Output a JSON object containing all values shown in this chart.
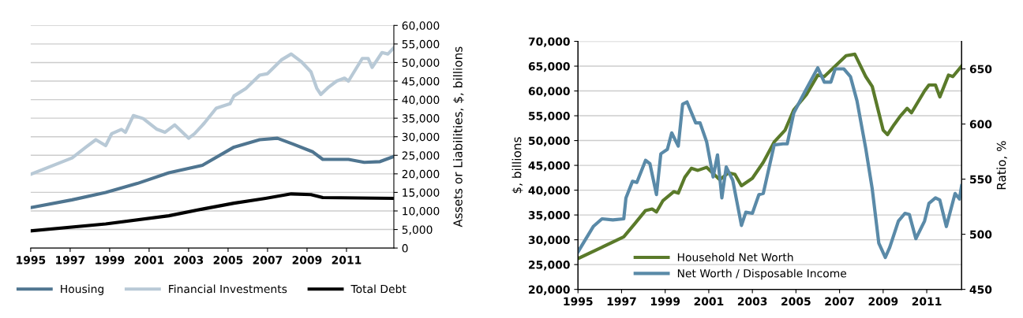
{
  "chart_data": [
    {
      "type": "line",
      "ylabel": "Assets or Liabilities, $, billions",
      "xlim": [
        1995,
        2013.4
      ],
      "xticks": [
        1995,
        1997,
        1999,
        2001,
        2003,
        2005,
        2007,
        2009,
        2011
      ],
      "ylim": [
        0,
        60000
      ],
      "yticks": [
        0,
        {
          "value": 5000,
          "label": "5,000"
        },
        {
          "value": 10000,
          "label": "10,000"
        },
        {
          "value": 15000,
          "label": "15,000"
        },
        {
          "value": 20000,
          "label": "20,000"
        },
        {
          "value": 25000,
          "label": "25,000"
        },
        {
          "value": 30000,
          "label": "30,000"
        },
        {
          "value": 35000,
          "label": "35,000"
        },
        {
          "value": 40000,
          "label": "40,000"
        },
        {
          "value": 45000,
          "label": "45,000"
        },
        {
          "value": 50000,
          "label": "50,000"
        },
        {
          "value": 55000,
          "label": "55,000"
        },
        {
          "value": 60000,
          "label": "60,000"
        }
      ],
      "grid": "y",
      "legend": "bottom",
      "series": [
        {
          "name": "Housing",
          "color": "#4f7590",
          "x": [
            1995,
            1997.1,
            1998.8,
            2000.4,
            2002.0,
            2003.7,
            2005.3,
            2006.6,
            2007.5,
            2008.3,
            2009.3,
            2009.8,
            2011.1,
            2011.9,
            2012.7,
            2013.4
          ],
          "values": [
            10900,
            13000,
            15000,
            17400,
            20300,
            22300,
            27200,
            29200,
            29600,
            28000,
            25900,
            23900,
            23900,
            23100,
            23300,
            24700
          ]
        },
        {
          "name": "Financial Investments",
          "color": "#b8c9d6",
          "x": [
            1995,
            1997.1,
            1997.8,
            1998.3,
            1998.8,
            1999.1,
            1999.6,
            1999.8,
            2000.2,
            2000.7,
            2001.4,
            2001.8,
            2002.3,
            2003.0,
            2003.3,
            2003.8,
            2004.4,
            2005.1,
            2005.3,
            2005.9,
            2006.6,
            2007.0,
            2007.7,
            2008.2,
            2008.7,
            2009.2,
            2009.5,
            2009.7,
            2010.1,
            2010.5,
            2010.9,
            2011.1,
            2011.8,
            2012.1,
            2012.3,
            2012.8,
            2013.1,
            2013.4
          ],
          "values": [
            19900,
            24300,
            27200,
            29200,
            27600,
            30800,
            32000,
            31200,
            35700,
            34900,
            32000,
            31200,
            33200,
            29600,
            30800,
            33700,
            37700,
            38900,
            41000,
            43000,
            46600,
            47000,
            50700,
            52300,
            50300,
            47500,
            43000,
            41400,
            43400,
            45000,
            45800,
            45000,
            51100,
            51100,
            48700,
            52700,
            52300,
            54000
          ]
        },
        {
          "name": "Total Debt",
          "color": "#000000",
          "x": [
            1995,
            1998.8,
            2002.0,
            2003.7,
            2005.3,
            2006.9,
            2008.2,
            2009.2,
            2009.8,
            2013.4
          ],
          "values": [
            4600,
            6500,
            8700,
            10500,
            12100,
            13400,
            14600,
            14400,
            13600,
            13400
          ]
        }
      ]
    },
    {
      "type": "line",
      "ylabel": "$, billions",
      "y2label": "Ratio, %",
      "xlim": [
        1995,
        2012.6
      ],
      "xticks": [
        1995,
        1997,
        1999,
        2001,
        2003,
        2005,
        2007,
        2009,
        2011
      ],
      "ylim": [
        20000,
        70000
      ],
      "yticks": [
        {
          "value": 20000,
          "label": "20,000"
        },
        {
          "value": 25000,
          "label": "25,000"
        },
        {
          "value": 30000,
          "label": "30,000"
        },
        {
          "value": 35000,
          "label": "35,000"
        },
        {
          "value": 40000,
          "label": "40,000"
        },
        {
          "value": 45000,
          "label": "45,000"
        },
        {
          "value": 50000,
          "label": "50,000"
        },
        {
          "value": 55000,
          "label": "55,000"
        },
        {
          "value": 60000,
          "label": "60,000"
        },
        {
          "value": 65000,
          "label": "65,000"
        },
        {
          "value": 70000,
          "label": "70,000"
        }
      ],
      "y2lim": [
        450,
        675
      ],
      "y2ticks": [
        450,
        500,
        550,
        600,
        650
      ],
      "grid": "y",
      "legend": "bottom",
      "series": [
        {
          "name": "Household Net Worth",
          "color": "#5a7a2a",
          "x": [
            1995,
            1996.1,
            1997.1,
            1997.6,
            1998.1,
            1998.4,
            1998.6,
            1998.9,
            1999.4,
            1999.6,
            1999.9,
            2000.2,
            2000.5,
            2000.9,
            2001.5,
            2001.9,
            2002.2,
            2002.5,
            2003.0,
            2003.5,
            2004.0,
            2004.5,
            2004.9,
            2005.5,
            2006.0,
            2006.3,
            2006.8,
            2007.3,
            2007.7,
            2008.2,
            2008.5,
            2009.0,
            2009.2,
            2009.5,
            2009.8,
            2010.1,
            2010.3,
            2010.9,
            2011.1,
            2011.4,
            2011.6,
            2012.0,
            2012.2,
            2012.6
          ],
          "values": [
            26200,
            28500,
            30600,
            33200,
            35900,
            36200,
            35600,
            37900,
            39700,
            39400,
            42600,
            44400,
            44000,
            44600,
            42100,
            43500,
            43200,
            40900,
            42400,
            45600,
            49700,
            52100,
            56200,
            59400,
            63200,
            62900,
            65000,
            67100,
            67400,
            62900,
            60900,
            52100,
            51200,
            53200,
            55000,
            56500,
            55600,
            60000,
            61200,
            61200,
            58800,
            63200,
            62900,
            65000
          ]
        },
        {
          "name": "Net Worth / Disposable Income",
          "color": "#5a8aa8",
          "axis": "y2",
          "x": [
            1995,
            1995.7,
            1996.1,
            1996.6,
            1997.1,
            1997.2,
            1997.5,
            1997.7,
            1998.1,
            1998.3,
            1998.6,
            1998.8,
            1999.1,
            1999.3,
            1999.6,
            1999.8,
            2000.0,
            2000.4,
            2000.6,
            2000.9,
            2001.2,
            2001.4,
            2001.6,
            2001.8,
            2002.1,
            2002.5,
            2002.7,
            2003.0,
            2003.3,
            2003.5,
            2004.0,
            2004.4,
            2004.6,
            2004.9,
            2005.4,
            2006.0,
            2006.3,
            2006.6,
            2006.8,
            2007.2,
            2007.5,
            2007.8,
            2008.2,
            2008.5,
            2008.8,
            2009.1,
            2009.3,
            2009.7,
            2010.0,
            2010.2,
            2010.5,
            2010.9,
            2011.1,
            2011.4,
            2011.6,
            2011.9,
            2012.3,
            2012.5,
            2012.6
          ],
          "values": [
            484,
            507,
            514,
            513,
            514,
            533,
            548,
            547,
            567,
            564,
            536,
            573,
            577,
            592,
            580,
            618,
            620,
            601,
            601,
            584,
            552,
            572,
            533,
            561,
            549,
            508,
            520,
            519,
            536,
            537,
            581,
            582,
            582,
            610,
            629,
            651,
            638,
            638,
            650,
            650,
            643,
            621,
            578,
            541,
            492,
            479,
            488,
            512,
            519,
            518,
            496,
            512,
            528,
            533,
            531,
            507,
            537,
            532,
            544
          ]
        }
      ]
    }
  ]
}
